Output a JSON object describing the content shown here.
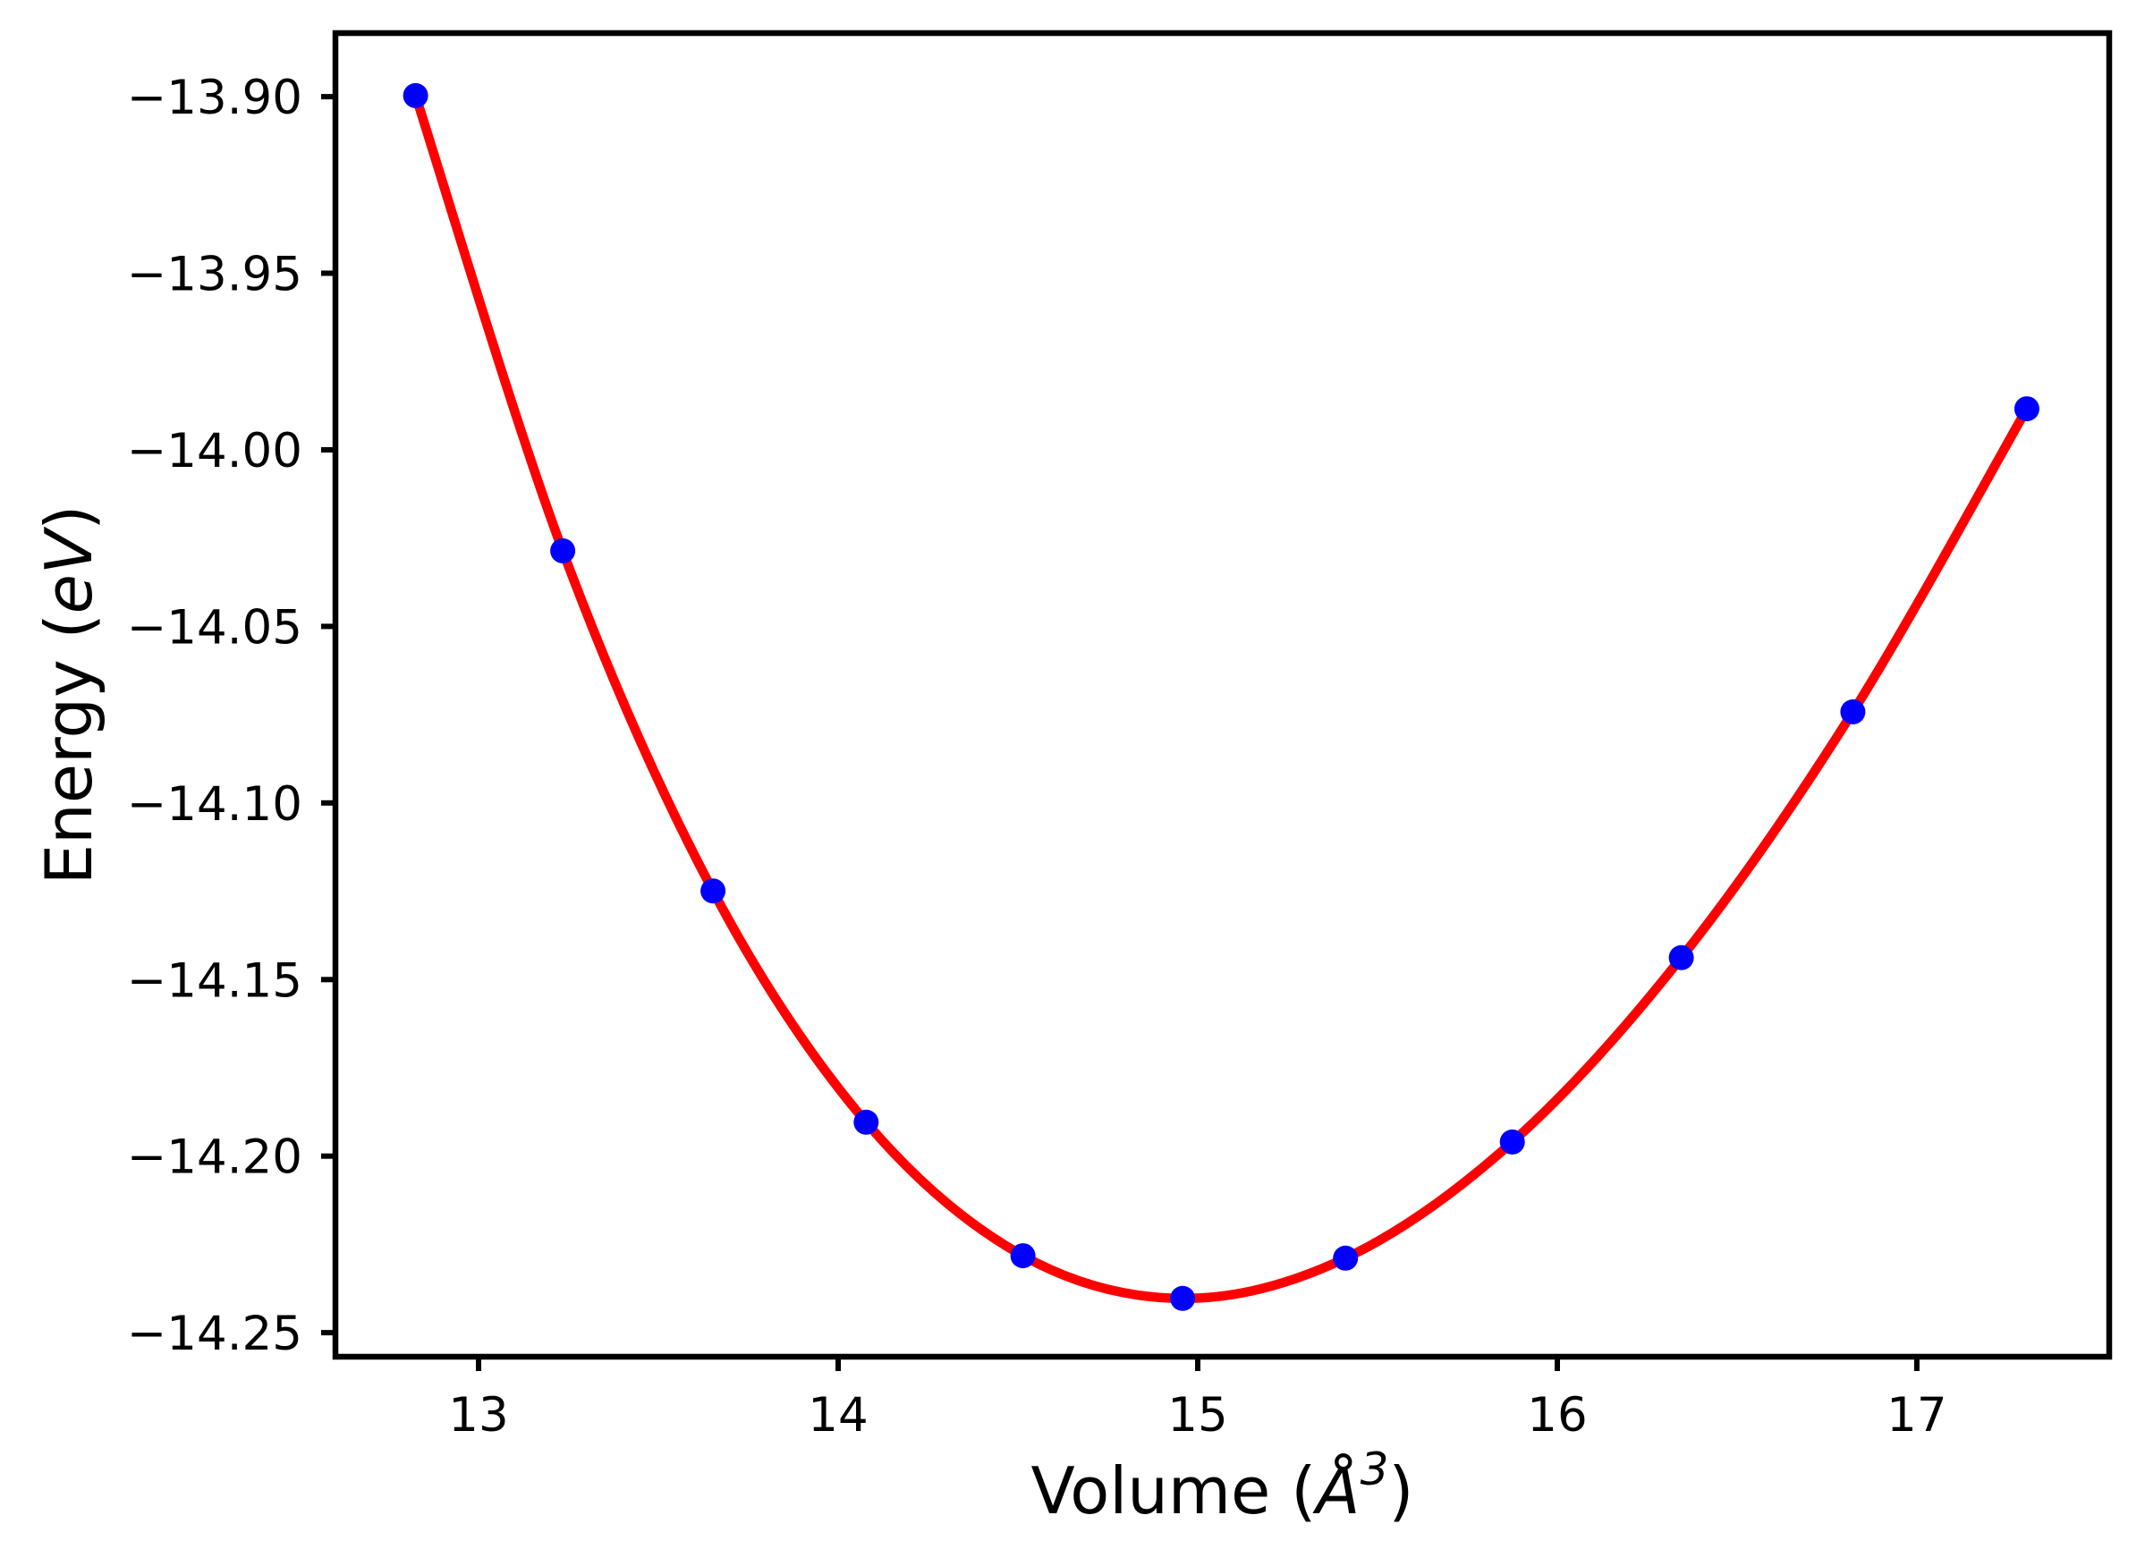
{
  "figure": {
    "background": "#FFFFFF",
    "text_color": "#000000",
    "spine_color": "#000000"
  },
  "chart_data": {
    "type": "scatter",
    "title": "",
    "xlabel": "Volume (Å³)",
    "ylabel": "Energy (eV)",
    "xlabel_parts": [
      {
        "t": "Volume (",
        "italic": false,
        "sup": false
      },
      {
        "t": "Å",
        "italic": true,
        "sup": false
      },
      {
        "t": "3",
        "italic": true,
        "sup": true
      },
      {
        "t": ")",
        "italic": false,
        "sup": false
      }
    ],
    "ylabel_parts": [
      {
        "t": "Energy (",
        "italic": false,
        "sup": false
      },
      {
        "t": "eV",
        "italic": true,
        "sup": false
      },
      {
        "t": ")",
        "italic": false,
        "sup": false
      }
    ],
    "xlim": [
      12.602,
      17.535
    ],
    "ylim": [
      -14.2568,
      -13.882
    ],
    "x_ticks": [
      13,
      14,
      15,
      16,
      17
    ],
    "x_tick_labels": [
      "13",
      "14",
      "15",
      "16",
      "17"
    ],
    "y_ticks": [
      -13.9,
      -13.95,
      -14.0,
      -14.05,
      -14.1,
      -14.15,
      -14.2,
      -14.25
    ],
    "y_tick_labels": [
      "−13.90",
      "−13.95",
      "−14.00",
      "−14.05",
      "−14.10",
      "−14.15",
      "−14.20",
      "−14.25"
    ],
    "grid": false,
    "legend": "none",
    "series": [
      {
        "name": "eos-fit-curve",
        "type": "line",
        "smooth": true,
        "color": "#FF0000",
        "x": [
          12.825,
          13.234,
          13.652,
          14.078,
          14.514,
          14.958,
          15.411,
          15.875,
          16.345,
          16.822,
          17.306
        ],
        "y": [
          -13.8997,
          -14.0286,
          -14.1249,
          -14.1904,
          -14.2282,
          -14.2403,
          -14.2289,
          -14.196,
          -14.1438,
          -14.0742,
          -13.9884
        ]
      },
      {
        "name": "calculated-points",
        "type": "scatter",
        "color": "#0000FF",
        "x": [
          12.825,
          13.234,
          13.652,
          14.078,
          14.514,
          14.958,
          15.411,
          15.875,
          16.345,
          16.822,
          17.306
        ],
        "y": [
          -13.8997,
          -14.0286,
          -14.1249,
          -14.1904,
          -14.2282,
          -14.2403,
          -14.2289,
          -14.196,
          -14.1438,
          -14.0742,
          -13.9884
        ]
      }
    ]
  }
}
